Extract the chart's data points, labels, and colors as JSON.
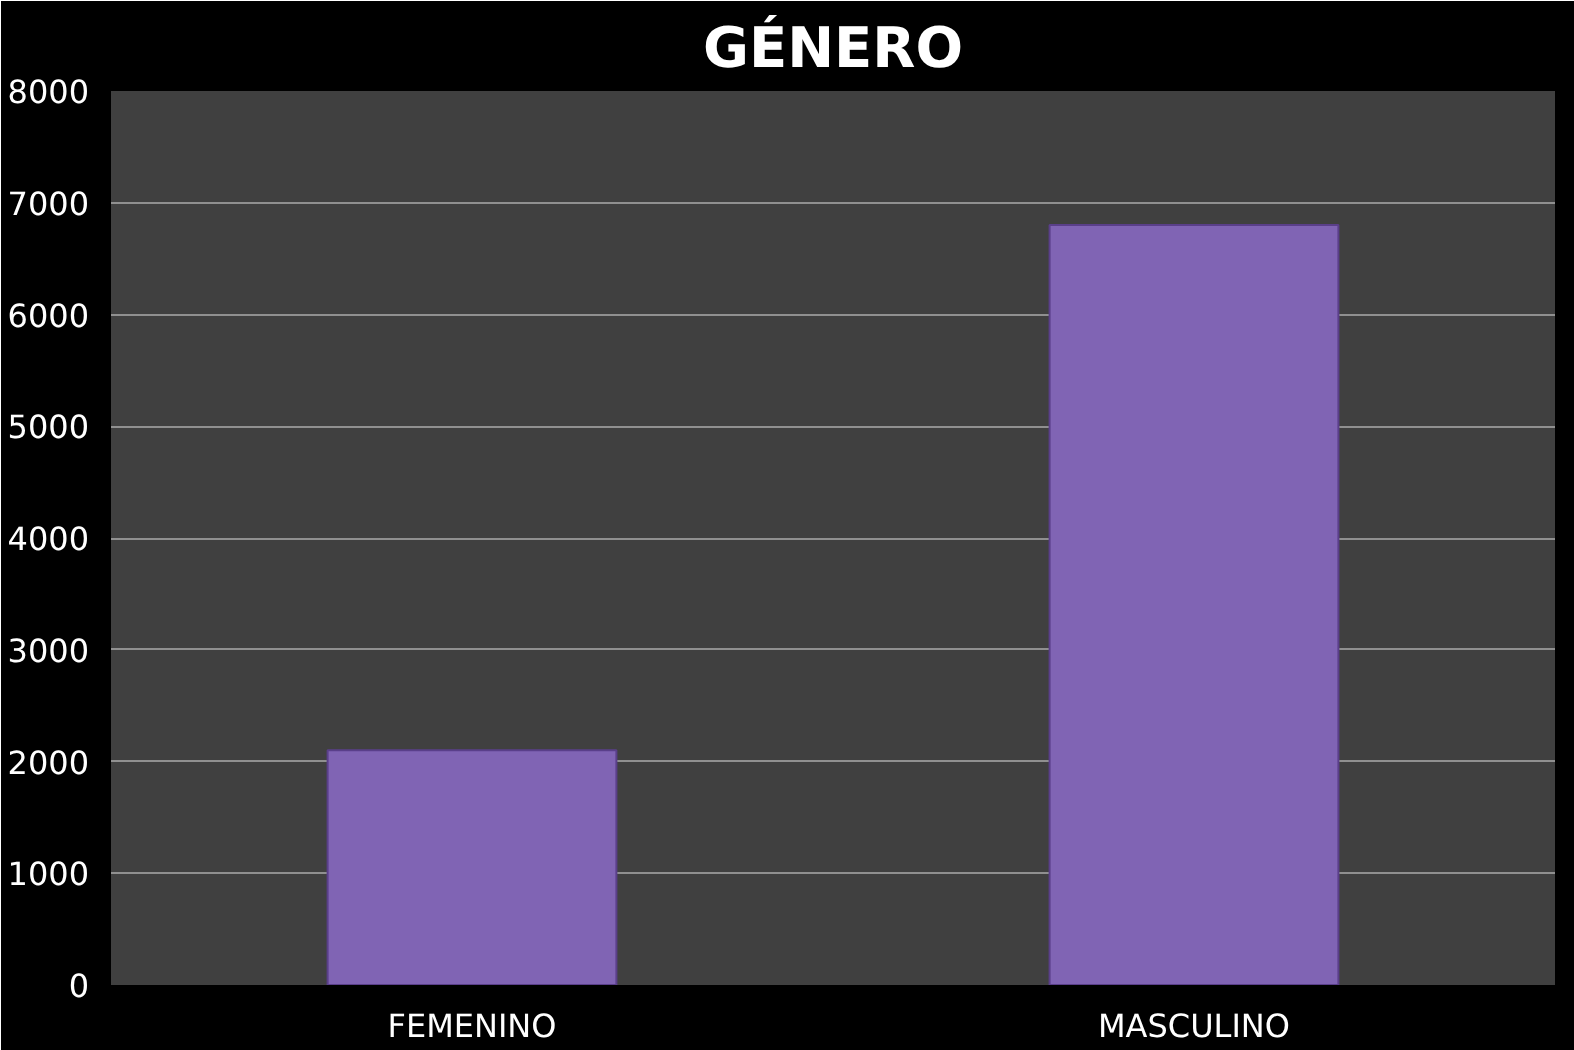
{
  "chart_data": {
    "type": "bar",
    "title": "GÉNERO",
    "categories": [
      "FEMENINO",
      "MASCULINO"
    ],
    "values": [
      2100,
      6800
    ],
    "color": "#8064b4",
    "ylim": [
      0,
      8000
    ],
    "yticks": [
      0,
      1000,
      2000,
      3000,
      4000,
      5000,
      6000,
      7000,
      8000
    ],
    "grid": "y"
  }
}
